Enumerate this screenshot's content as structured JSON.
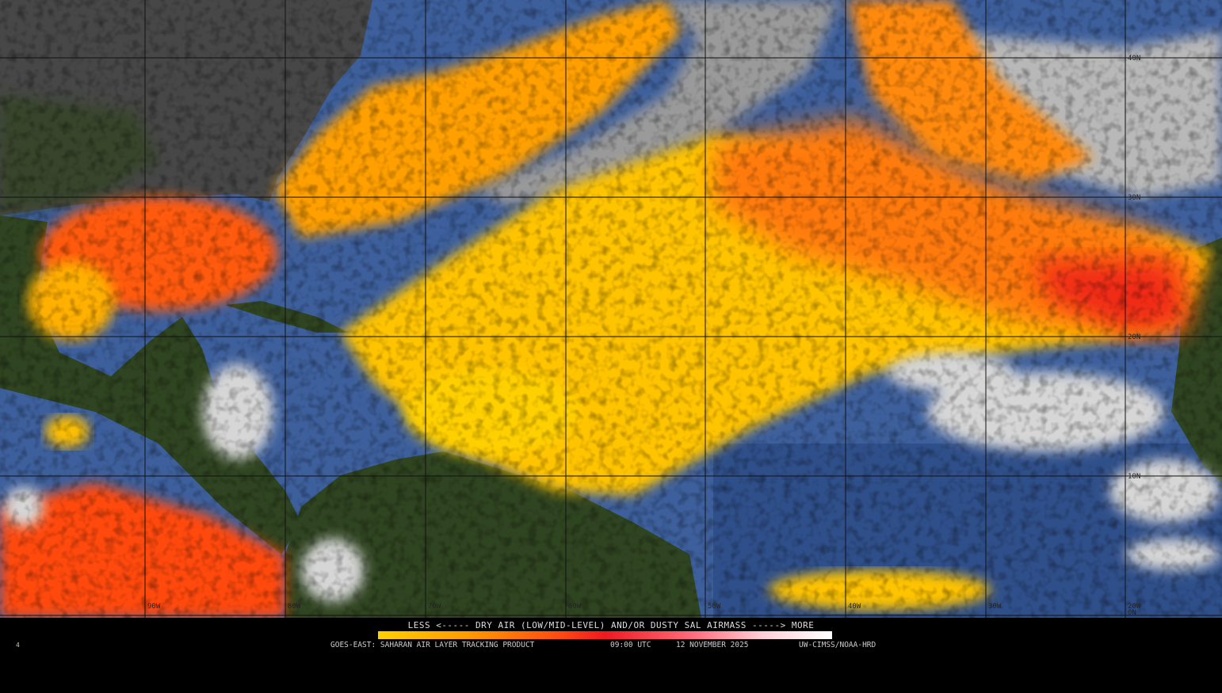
{
  "product": {
    "legend_title": "LESS <----- DRY AIR (LOW/MID-LEVEL) AND/OR DUSTY SAL AIRMASS -----> MORE",
    "legend_colors": [
      "#ffd000",
      "#ff9a00",
      "#ff4a10",
      "#f01820",
      "#ff7080",
      "#ffd0d8",
      "#ffffff"
    ],
    "source": "GOES-EAST: SAHARAN AIR LAYER TRACKING PRODUCT",
    "time": "09:00 UTC",
    "date": "12 NOVEMBER 2025",
    "credit": "UW-CIMSS/NOAA-HRD",
    "corner_mark": "4"
  },
  "grid": {
    "latitudes": [
      "40N",
      "30N",
      "20N",
      "10N",
      "0N"
    ],
    "longitudes": [
      "90W",
      "80W",
      "70W",
      "60W",
      "50W",
      "40W",
      "30W",
      "20W"
    ]
  },
  "colors": {
    "ocean": "#3d5f9c",
    "land_dark": "#4a4a4a",
    "land_green": "#2f4420",
    "clouds": "#c8c8c8",
    "sal_low": "#ffd000",
    "sal_mid": "#ff7a10",
    "sal_high": "#f01820"
  }
}
